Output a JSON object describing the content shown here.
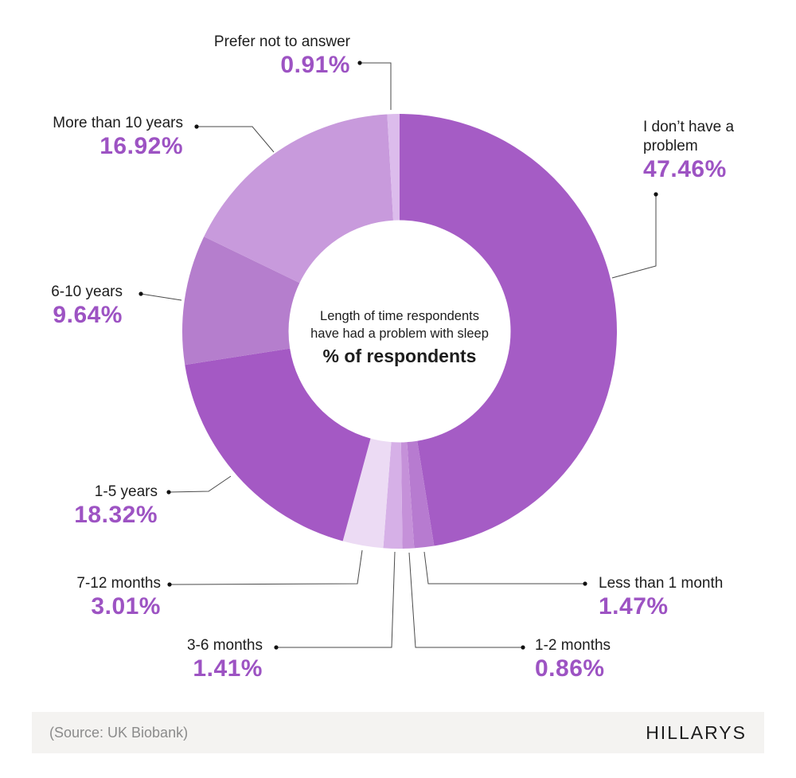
{
  "chart_data": {
    "type": "pie",
    "variant": "donut",
    "title": "Length of time respondents have had a problem with sleep",
    "center_text": {
      "line1": "Length of time respondents",
      "line2": "have had a problem with sleep",
      "subtitle": "% of respondents"
    },
    "unit": "%",
    "start_angle_deg": 0,
    "direction": "clockwise",
    "segments": [
      {
        "label": "I don’t have a problem",
        "value": 47.46,
        "display": "47.46%",
        "color": "#a55cc5"
      },
      {
        "label": "Less than 1 month",
        "value": 1.47,
        "display": "1.47%",
        "color": "#b77bd0"
      },
      {
        "label": "1-2 months",
        "value": 0.86,
        "display": "0.86%",
        "color": "#c591d9"
      },
      {
        "label": "3-6 months",
        "value": 1.41,
        "display": "1.41%",
        "color": "#d6b0e7"
      },
      {
        "label": "7-12 months",
        "value": 3.01,
        "display": "3.01%",
        "color": "#ecdbf4"
      },
      {
        "label": "1-5 years",
        "value": 18.32,
        "display": "18.32%",
        "color": "#a459c4"
      },
      {
        "label": "6-10 years",
        "value": 9.64,
        "display": "9.64%",
        "color": "#b57ecd"
      },
      {
        "label": "More than 10 years",
        "value": 16.92,
        "display": "16.92%",
        "color": "#c89adc"
      },
      {
        "label": "Prefer not to answer",
        "value": 0.91,
        "display": "0.91%",
        "color": "#dcbcec"
      }
    ],
    "value_text_color": "#9d53c3",
    "label_text_color": "#1d1d1d"
  },
  "footer": {
    "source": "(Source: UK Biobank)",
    "brand": "HILLARYS"
  }
}
